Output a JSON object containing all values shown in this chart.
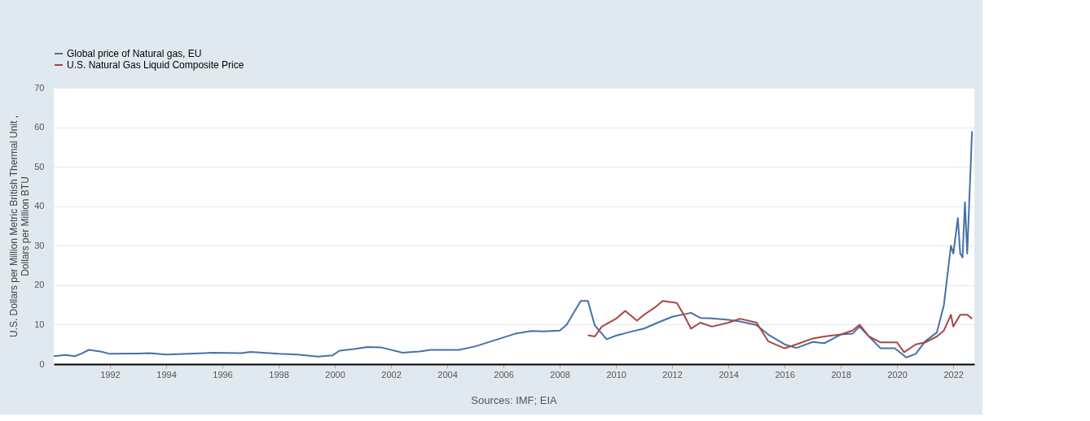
{
  "chart_data": {
    "type": "line",
    "ylabel": "U.S. Dollars per Million Metric British Thermal Unit , Dollars per Million BTU",
    "annotations": [
      "Sources: IMF; EIA"
    ],
    "xlim": [
      "1990-01",
      "2022-10"
    ],
    "xticks": [
      "1992",
      "1994",
      "1996",
      "1998",
      "2000",
      "2002",
      "2004",
      "2006",
      "2008",
      "2010",
      "2012",
      "2014",
      "2016",
      "2018",
      "2020",
      "2022"
    ],
    "ylim": [
      0,
      70
    ],
    "yticks": [
      0,
      10,
      20,
      30,
      40,
      50,
      60,
      70
    ],
    "grid": "y",
    "legend": "top left",
    "line_style": "solid",
    "marker": "none",
    "series": [
      {
        "name": "Global price of Natural gas, EU",
        "color": "#4572a7",
        "x": [
          "1990-01",
          "1990-06",
          "1990-10",
          "1991-01",
          "1991-04",
          "1991-09",
          "1992-01",
          "1993-01",
          "1993-06",
          "1994-01",
          "1995-01",
          "1995-09",
          "1996-09",
          "1997-01",
          "1998-01",
          "1998-09",
          "1999-06",
          "1999-12",
          "2000-03",
          "2000-09",
          "2001-03",
          "2001-09",
          "2002-06",
          "2003-01",
          "2003-06",
          "2004-06",
          "2005-01",
          "2005-09",
          "2006-06",
          "2007-01",
          "2007-06",
          "2008-01",
          "2008-04",
          "2008-07",
          "2008-10",
          "2009-01",
          "2009-04",
          "2009-06",
          "2009-09",
          "2010-01",
          "2010-06",
          "2011-01",
          "2011-06",
          "2012-01",
          "2012-09",
          "2013-01",
          "2013-06",
          "2014-01",
          "2014-06",
          "2015-01",
          "2015-06",
          "2016-01",
          "2016-06",
          "2017-01",
          "2017-06",
          "2018-01",
          "2018-06",
          "2018-09",
          "2019-01",
          "2019-06",
          "2019-12",
          "2020-05",
          "2020-09",
          "2021-01",
          "2021-06",
          "2021-09",
          "2021-12",
          "2022-01",
          "2022-03",
          "2022-04",
          "2022-05",
          "2022-06",
          "2022-07",
          "2022-09"
        ],
        "values": [
          2.0,
          2.3,
          2.0,
          2.7,
          3.6,
          3.2,
          2.6,
          2.7,
          2.8,
          2.4,
          2.7,
          2.9,
          2.8,
          3.1,
          2.6,
          2.4,
          1.9,
          2.2,
          3.4,
          3.8,
          4.3,
          4.2,
          2.9,
          3.2,
          3.6,
          3.6,
          4.5,
          6.0,
          7.7,
          8.4,
          8.3,
          8.5,
          10,
          13,
          16,
          16,
          9.8,
          8.4,
          6.3,
          7.2,
          8.0,
          9.0,
          10.3,
          12.0,
          13.0,
          11.7,
          11.6,
          11.2,
          10.8,
          9.9,
          7.5,
          5.0,
          4.1,
          5.6,
          5.3,
          7.5,
          7.7,
          9.5,
          7.0,
          4.0,
          4.0,
          1.7,
          2.6,
          5.8,
          8.0,
          15,
          30,
          28,
          37,
          28,
          27,
          41,
          28,
          59
        ]
      },
      {
        "name": "U.S. Natural Gas Liquid Composite Price",
        "color": "#aa4643",
        "x": [
          "2009-01",
          "2009-04",
          "2009-07",
          "2010-01",
          "2010-05",
          "2010-10",
          "2011-01",
          "2011-06",
          "2011-09",
          "2012-03",
          "2012-06",
          "2012-09",
          "2013-01",
          "2013-06",
          "2014-01",
          "2014-06",
          "2015-01",
          "2015-06",
          "2016-01",
          "2016-06",
          "2017-01",
          "2017-06",
          "2018-01",
          "2018-06",
          "2018-09",
          "2019-01",
          "2019-06",
          "2020-01",
          "2020-04",
          "2020-09",
          "2021-01",
          "2021-06",
          "2021-09",
          "2021-12",
          "2022-01",
          "2022-04",
          "2022-07",
          "2022-09"
        ],
        "values": [
          7.3,
          7.0,
          9.5,
          11.5,
          13.5,
          11,
          12.5,
          14.5,
          16,
          15.5,
          12.5,
          9,
          10.5,
          9.5,
          10.5,
          11.5,
          10.5,
          5.8,
          4.0,
          5.0,
          6.5,
          7.0,
          7.5,
          8.5,
          10.0,
          7.0,
          5.5,
          5.5,
          3.0,
          5.0,
          5.5,
          7.0,
          8.5,
          12.5,
          9.5,
          12.5,
          12.5,
          11.5
        ]
      }
    ]
  }
}
